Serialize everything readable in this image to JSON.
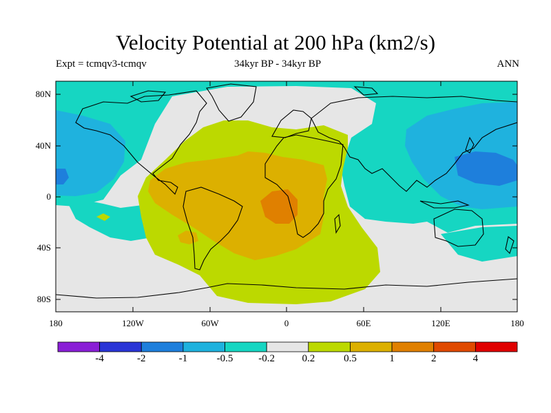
{
  "header": {
    "title": "Velocity Potential at 200 hPa (km2/s)",
    "experiment": "Expt = tcmqv3-tcmqv",
    "period": "34kyr BP - 34kyr BP",
    "season": "ANN"
  },
  "map": {
    "projection": "cylindrical equidistant",
    "lon_range": [
      -180,
      180
    ],
    "lat_range": [
      -90,
      90
    ],
    "y_ticks": [
      "80N",
      "40N",
      "0",
      "40S",
      "80S"
    ],
    "x_ticks": [
      "180",
      "120W",
      "60W",
      "0",
      "60E",
      "120E",
      "180"
    ],
    "coastlines": true
  },
  "colorbar": {
    "colors": [
      "#8a1fd6",
      "#2a35d6",
      "#1e7fdc",
      "#1fb2de",
      "#16d6c2",
      "#e6e6e6",
      "#bcd900",
      "#dcb000",
      "#e08000",
      "#e04a00",
      "#e00000"
    ],
    "labels": [
      "-4",
      "-2",
      "-1",
      "-0.5",
      "-0.2",
      "0.2",
      "0.5",
      "1",
      "2",
      "4"
    ]
  }
}
